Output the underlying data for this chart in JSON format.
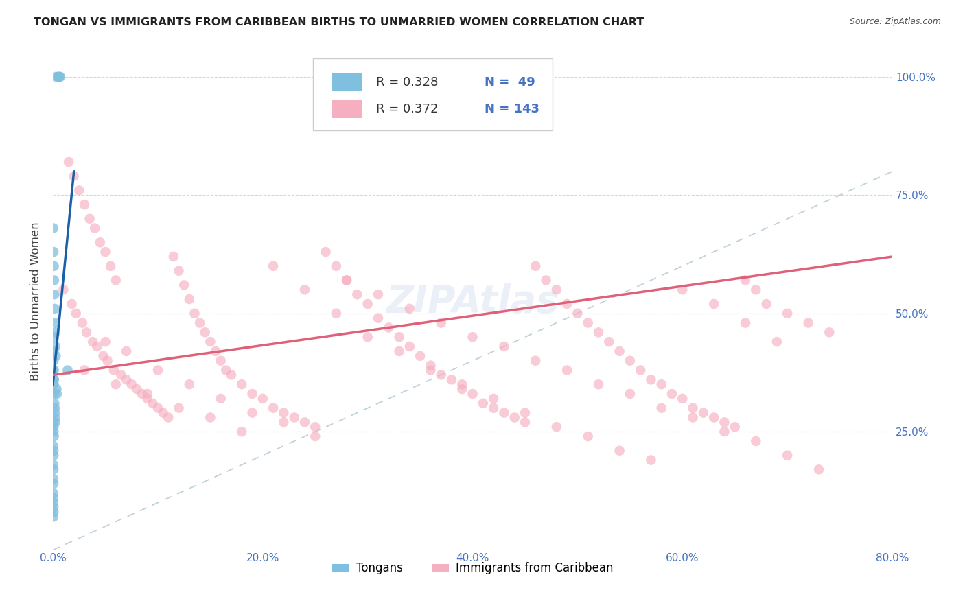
{
  "title": "TONGAN VS IMMIGRANTS FROM CARIBBEAN BIRTHS TO UNMARRIED WOMEN CORRELATION CHART",
  "source": "Source: ZipAtlas.com",
  "ylabel": "Births to Unmarried Women",
  "xlim": [
    0,
    80
  ],
  "ylim": [
    0,
    105
  ],
  "color_blue": "#7fbfdf",
  "color_blue_line": "#1a5fa8",
  "color_pink": "#f5afc0",
  "color_pink_line": "#e0607a",
  "color_diag": "#b8ccd8",
  "color_text": "#333333",
  "color_axis": "#4472c4",
  "grid_color": "#d0d8e0",
  "background": "#ffffff",
  "legend_label_1": "Tongans",
  "legend_label_2": "Immigrants from Caribbean",
  "tongans_x": [
    0.3,
    0.5,
    0.6,
    0.6,
    0.7,
    0.05,
    0.07,
    0.1,
    0.12,
    0.15,
    0.18,
    0.2,
    0.22,
    0.25,
    0.28,
    0.05,
    0.08,
    0.1,
    0.12,
    0.15,
    0.18,
    0.2,
    0.05,
    0.07,
    0.08,
    0.1,
    0.12,
    0.05,
    0.07,
    0.08,
    0.1,
    0.05,
    0.07,
    0.08,
    0.05,
    0.07,
    0.05,
    0.07,
    0.05,
    0.05,
    0.05,
    0.07,
    0.08,
    1.4,
    0.05,
    0.35,
    0.38,
    0.2,
    0.25
  ],
  "tongans_y": [
    100,
    100,
    100,
    100,
    100,
    68,
    63,
    60,
    57,
    54,
    51,
    48,
    46,
    43,
    41,
    38,
    36,
    35,
    33,
    31,
    30,
    29,
    45,
    42,
    40,
    38,
    36,
    27,
    26,
    25,
    24,
    22,
    21,
    20,
    18,
    17,
    15,
    14,
    12,
    11,
    10,
    9,
    8,
    38,
    7,
    34,
    33,
    28,
    27
  ],
  "carib_x": [
    1.5,
    2.0,
    2.5,
    3.0,
    3.5,
    4.0,
    4.5,
    5.0,
    5.5,
    6.0,
    1.0,
    1.8,
    2.2,
    2.8,
    3.2,
    3.8,
    4.2,
    4.8,
    5.2,
    5.8,
    6.5,
    7.0,
    7.5,
    8.0,
    8.5,
    9.0,
    9.5,
    10.0,
    10.5,
    11.0,
    11.5,
    12.0,
    12.5,
    13.0,
    13.5,
    14.0,
    14.5,
    15.0,
    15.5,
    16.0,
    16.5,
    17.0,
    18.0,
    19.0,
    20.0,
    21.0,
    22.0,
    23.0,
    24.0,
    25.0,
    26.0,
    27.0,
    28.0,
    29.0,
    30.0,
    31.0,
    32.0,
    33.0,
    34.0,
    35.0,
    36.0,
    37.0,
    38.0,
    39.0,
    40.0,
    41.0,
    42.0,
    43.0,
    44.0,
    45.0,
    46.0,
    47.0,
    48.0,
    49.0,
    50.0,
    51.0,
    52.0,
    53.0,
    54.0,
    55.0,
    56.0,
    57.0,
    58.0,
    59.0,
    60.0,
    61.0,
    62.0,
    63.0,
    64.0,
    65.0,
    66.0,
    67.0,
    68.0,
    70.0,
    72.0,
    74.0,
    5.0,
    7.0,
    10.0,
    13.0,
    16.0,
    19.0,
    22.0,
    25.0,
    28.0,
    31.0,
    34.0,
    37.0,
    40.0,
    43.0,
    46.0,
    49.0,
    52.0,
    55.0,
    58.0,
    61.0,
    64.0,
    67.0,
    70.0,
    73.0,
    3.0,
    6.0,
    9.0,
    12.0,
    15.0,
    18.0,
    21.0,
    24.0,
    27.0,
    30.0,
    33.0,
    36.0,
    39.0,
    42.0,
    45.0,
    48.0,
    51.0,
    54.0,
    57.0,
    60.0,
    63.0,
    66.0,
    69.0
  ],
  "carib_y": [
    82,
    79,
    76,
    73,
    70,
    68,
    65,
    63,
    60,
    57,
    55,
    52,
    50,
    48,
    46,
    44,
    43,
    41,
    40,
    38,
    37,
    36,
    35,
    34,
    33,
    32,
    31,
    30,
    29,
    28,
    62,
    59,
    56,
    53,
    50,
    48,
    46,
    44,
    42,
    40,
    38,
    37,
    35,
    33,
    32,
    30,
    29,
    28,
    27,
    26,
    63,
    60,
    57,
    54,
    52,
    49,
    47,
    45,
    43,
    41,
    39,
    37,
    36,
    34,
    33,
    31,
    30,
    29,
    28,
    27,
    60,
    57,
    55,
    52,
    50,
    48,
    46,
    44,
    42,
    40,
    38,
    36,
    35,
    33,
    32,
    30,
    29,
    28,
    27,
    26,
    57,
    55,
    52,
    50,
    48,
    46,
    44,
    42,
    38,
    35,
    32,
    29,
    27,
    24,
    57,
    54,
    51,
    48,
    45,
    43,
    40,
    38,
    35,
    33,
    30,
    28,
    25,
    23,
    20,
    17,
    38,
    35,
    33,
    30,
    28,
    25,
    60,
    55,
    50,
    45,
    42,
    38,
    35,
    32,
    29,
    26,
    24,
    21,
    19,
    55,
    52,
    48,
    44
  ]
}
